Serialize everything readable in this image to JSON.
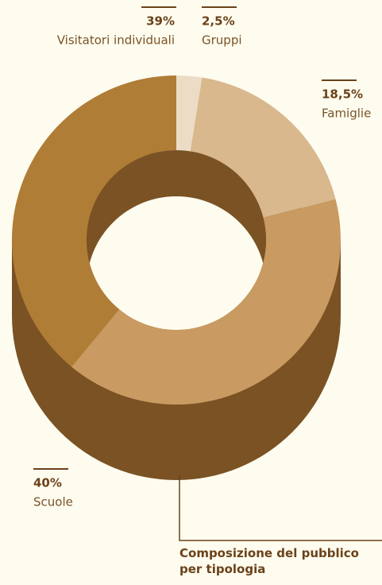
{
  "chart_data": {
    "type": "donut3d",
    "title": "Composizione del pubblico per tipologia",
    "categories": [
      "Gruppi",
      "Famiglie",
      "Scuole",
      "Visitatori individuali"
    ],
    "values": [
      2.5,
      18.5,
      40,
      39
    ],
    "value_labels": [
      "2,5%",
      "18,5%",
      "40%",
      "39%"
    ],
    "colors": [
      "#ecdcc6",
      "#d9b88e",
      "#c99a61",
      "#b07d36"
    ],
    "side_color": "#7a5224"
  }
}
